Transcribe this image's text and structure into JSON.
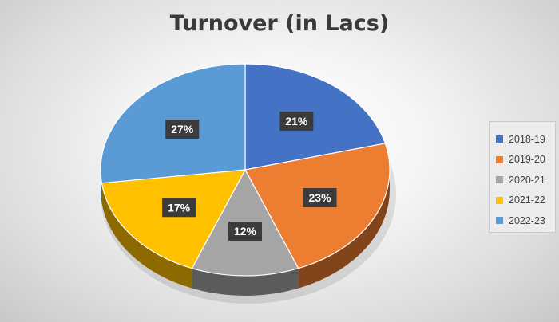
{
  "chart_data": {
    "type": "pie",
    "title": "Turnover (in Lacs)",
    "categories": [
      "2018-19",
      "2019-20",
      "2020-21",
      "2021-22",
      "2022-23"
    ],
    "values": [
      21,
      23,
      12,
      17,
      27
    ],
    "labels": [
      "21%",
      "23%",
      "12%",
      "17%",
      "27%"
    ],
    "colors": [
      "#4472C4",
      "#ED7D31",
      "#A5A5A5",
      "#FFC000",
      "#5B9BD5"
    ],
    "legend_position": "right",
    "style": "3d"
  }
}
